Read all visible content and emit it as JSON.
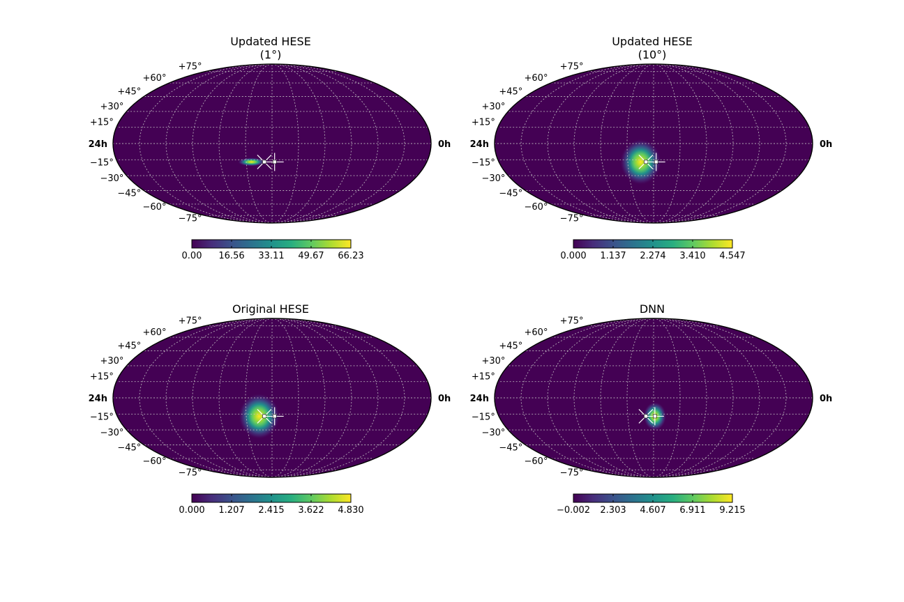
{
  "chart_data": [
    {
      "type": "heatmap",
      "projection": "mollweide",
      "title_lines": [
        "Updated HESE",
        "(1°)"
      ],
      "ra_left_label": "24h",
      "ra_right_label": "0h",
      "dec_labels": [
        "+75°",
        "+60°",
        "+45°",
        "+30°",
        "+15°",
        "−15°",
        "−30°",
        "−45°",
        "−60°",
        "−75°"
      ],
      "colorbar_ticks": [
        "0.00",
        "16.56",
        "33.11",
        "49.67",
        "66.23"
      ],
      "colorbar_range": [
        0.0,
        66.23
      ],
      "colormap": "viridis",
      "hotspot": {
        "ra_hours": 13.6,
        "dec_deg": -17,
        "ra_sigma_deg": 6,
        "dec_sigma_deg": 1.5,
        "peak": 66.23
      },
      "markers": {
        "cross_ra_hours": 12.6,
        "cross_dec_deg": -17,
        "plus_ra_hours": 11.8,
        "plus_dec_deg": -17
      }
    },
    {
      "type": "heatmap",
      "projection": "mollweide",
      "title_lines": [
        "Updated HESE",
        "(10°)"
      ],
      "ra_left_label": "24h",
      "ra_right_label": "0h",
      "dec_labels": [
        "+75°",
        "+60°",
        "+45°",
        "+30°",
        "+15°",
        "−15°",
        "−30°",
        "−45°",
        "−60°",
        "−75°"
      ],
      "colorbar_ticks": [
        "0.000",
        "1.137",
        "2.274",
        "3.410",
        "4.547"
      ],
      "colorbar_range": [
        0.0,
        4.547
      ],
      "colormap": "viridis",
      "hotspot": {
        "ra_hours": 13.0,
        "dec_deg": -17,
        "ra_sigma_deg": 9,
        "dec_sigma_deg": 8,
        "peak": 4.547
      },
      "markers": {
        "cross_ra_hours": 12.6,
        "cross_dec_deg": -17,
        "plus_ra_hours": 11.8,
        "plus_dec_deg": -17
      }
    },
    {
      "type": "heatmap",
      "projection": "mollweide",
      "title_lines": [
        "Original HESE"
      ],
      "ra_left_label": "24h",
      "ra_right_label": "0h",
      "dec_labels": [
        "+75°",
        "+60°",
        "+45°",
        "+30°",
        "+15°",
        "−15°",
        "−30°",
        "−45°",
        "−60°",
        "−75°"
      ],
      "colorbar_ticks": [
        "0.000",
        "1.207",
        "2.415",
        "3.622",
        "4.830"
      ],
      "colorbar_range": [
        0.0,
        4.83
      ],
      "colormap": "viridis",
      "hotspot": {
        "ra_hours": 13.0,
        "dec_deg": -17,
        "ra_sigma_deg": 9,
        "dec_sigma_deg": 8,
        "peak": 4.83
      },
      "markers": {
        "cross_ra_hours": 12.6,
        "cross_dec_deg": -17,
        "plus_ra_hours": 11.8,
        "plus_dec_deg": -17
      }
    },
    {
      "type": "heatmap",
      "projection": "mollweide",
      "title_lines": [
        "DNN"
      ],
      "ra_left_label": "24h",
      "ra_right_label": "0h",
      "dec_labels": [
        "+75°",
        "+60°",
        "+45°",
        "+30°",
        "+15°",
        "−15°",
        "−30°",
        "−45°",
        "−60°",
        "−75°"
      ],
      "colorbar_ticks": [
        "−0.002",
        "2.303",
        "4.607",
        "6.911",
        "9.215"
      ],
      "colorbar_range": [
        -0.002,
        9.215
      ],
      "colormap": "viridis",
      "hotspot": {
        "ra_hours": 11.9,
        "dec_deg": -17,
        "ra_sigma_deg": 5,
        "dec_sigma_deg": 5,
        "peak": 9.215
      },
      "markers": {
        "cross_ra_hours": 12.6,
        "cross_dec_deg": -17,
        "plus_ra_hours": 11.9,
        "plus_dec_deg": -17
      }
    }
  ]
}
